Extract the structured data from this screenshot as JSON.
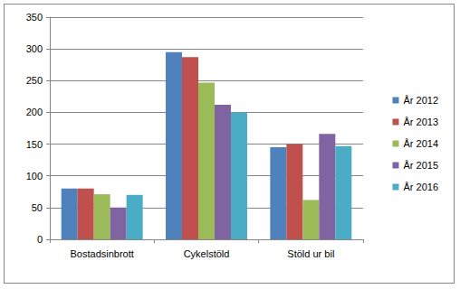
{
  "chart_data": {
    "type": "bar",
    "categories": [
      "Bostadsinbrott",
      "Cykelstöld",
      "Stöld ur bil"
    ],
    "series": [
      {
        "name": "År 2012",
        "color": "#4f81bd",
        "values": [
          80,
          295,
          145
        ]
      },
      {
        "name": "År 2013",
        "color": "#c0504d",
        "values": [
          80,
          287,
          150
        ]
      },
      {
        "name": "År 2014",
        "color": "#9bbb59",
        "values": [
          71,
          247,
          62
        ]
      },
      {
        "name": "År 2015",
        "color": "#8064a2",
        "values": [
          50,
          212,
          166
        ]
      },
      {
        "name": "År 2016",
        "color": "#4bacc6",
        "values": [
          70,
          200,
          147
        ]
      }
    ],
    "ylim": [
      0,
      350
    ],
    "yticks": [
      0,
      50,
      100,
      150,
      200,
      250,
      300,
      350
    ],
    "grid": true,
    "legend": "right"
  }
}
